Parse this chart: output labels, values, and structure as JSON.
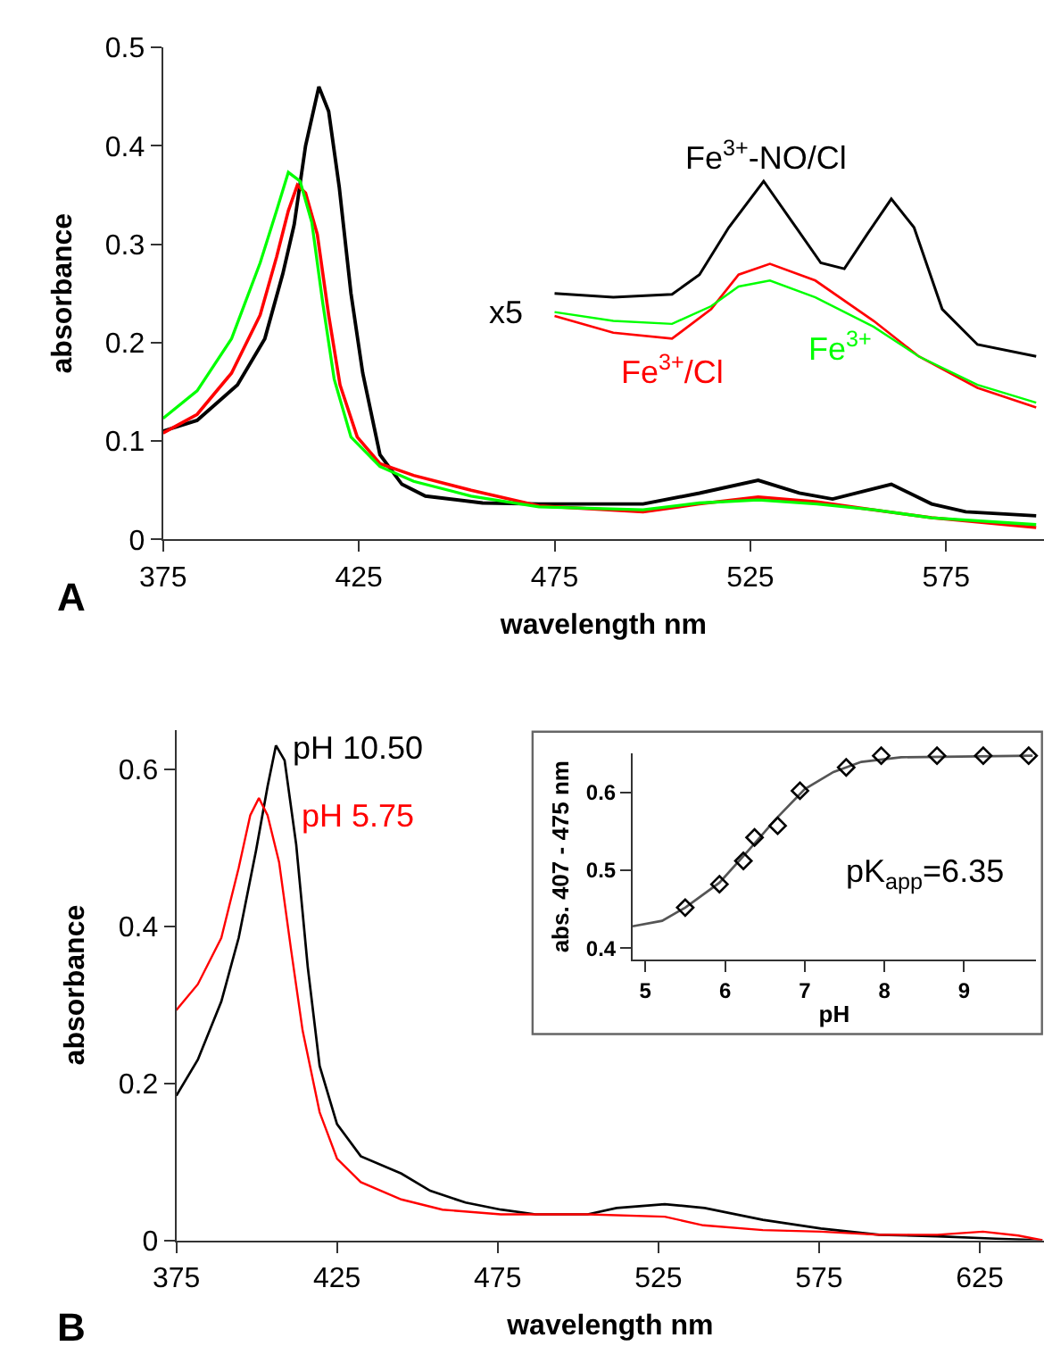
{
  "chart_data": [
    {
      "type": "line",
      "xlabel": "wavelength nm",
      "ylabel": "absorbance",
      "xlim": [
        375,
        600
      ],
      "ylim": [
        0,
        0.5
      ],
      "xticks": [
        375,
        425,
        475,
        525,
        575
      ],
      "yticks": [
        0,
        0.1,
        0.2,
        0.3,
        0.4,
        0.5
      ],
      "grid": false,
      "series": [
        {
          "color": "#000000",
          "x": [
            375,
            383.7,
            394,
            401,
            405.6,
            408.5,
            411.4,
            414.8,
            417.3,
            420,
            423,
            426,
            430.4,
            436,
            442,
            456.6,
            471,
            497.6,
            512,
            527,
            537.5,
            546,
            561,
            571.3,
            580,
            598
          ],
          "values": [
            0.11,
            0.121,
            0.157,
            0.204,
            0.27,
            0.32,
            0.4,
            0.46,
            0.435,
            0.358,
            0.25,
            0.169,
            0.086,
            0.056,
            0.044,
            0.037,
            0.036,
            0.036,
            0.047,
            0.06,
            0.047,
            0.041,
            0.056,
            0.036,
            0.028,
            0.024
          ]
        },
        {
          "color": "#ff0000",
          "x": [
            375,
            383.7,
            392.5,
            399.8,
            404,
            407,
            409.3,
            411.4,
            414.4,
            417.3,
            420.2,
            424.6,
            430.4,
            439,
            453.7,
            471,
            497.6,
            512,
            527,
            542,
            556.5,
            571.3,
            598
          ],
          "values": [
            0.108,
            0.127,
            0.169,
            0.228,
            0.287,
            0.334,
            0.36,
            0.352,
            0.31,
            0.228,
            0.157,
            0.104,
            0.077,
            0.065,
            0.05,
            0.034,
            0.028,
            0.036,
            0.043,
            0.038,
            0.03,
            0.022,
            0.012
          ]
        },
        {
          "color": "#00ff00",
          "x": [
            375,
            383.7,
            392.5,
            399.8,
            404,
            407,
            410,
            413,
            415.8,
            418.7,
            423,
            430.4,
            439,
            453.7,
            471,
            497.6,
            512,
            527,
            542,
            556.5,
            571.3,
            598
          ],
          "values": [
            0.123,
            0.151,
            0.204,
            0.281,
            0.334,
            0.373,
            0.364,
            0.322,
            0.24,
            0.163,
            0.104,
            0.074,
            0.059,
            0.044,
            0.033,
            0.03,
            0.037,
            0.04,
            0.036,
            0.03,
            0.022,
            0.015
          ]
        },
        {
          "name": "Fe$^{3+}$-NO/Cl",
          "color": "#000000",
          "x": [
            475,
            490,
            505,
            512,
            519.5,
            528.4,
            535.8,
            543,
            549,
            555,
            561,
            566.8,
            574,
            583,
            598
          ],
          "values": [
            0.25,
            0.246,
            0.249,
            0.269,
            0.317,
            0.364,
            0.322,
            0.281,
            0.275,
            0.311,
            0.346,
            0.317,
            0.234,
            0.198,
            0.186
          ]
        },
        {
          "name": "Fe$^{3+}$/Cl",
          "color": "#ff0000",
          "x": [
            475,
            490,
            505,
            515,
            522,
            530,
            541.6,
            556.5,
            568,
            583,
            598
          ],
          "values": [
            0.227,
            0.21,
            0.204,
            0.234,
            0.269,
            0.28,
            0.263,
            0.222,
            0.186,
            0.154,
            0.134
          ]
        },
        {
          "name": "Fe$^{3+}$",
          "color": "#00ff00",
          "x": [
            475,
            490,
            505,
            515,
            522,
            530,
            541.6,
            556.5,
            568,
            583,
            598
          ],
          "values": [
            0.231,
            0.222,
            0.219,
            0.237,
            0.257,
            0.263,
            0.246,
            0.216,
            0.186,
            0.157,
            0.139
          ]
        }
      ],
      "annotations": [
        "x5",
        "A"
      ]
    },
    {
      "type": "line",
      "xlabel": "wavelength nm",
      "ylabel": "absorbance",
      "xlim": [
        375,
        645
      ],
      "ylim": [
        0,
        0.65
      ],
      "xticks": [
        375,
        425,
        475,
        525,
        575,
        625
      ],
      "yticks": [
        0,
        0.2,
        0.4,
        0.6
      ],
      "grid": false,
      "series": [
        {
          "name": "pH 10.50",
          "color": "#000000",
          "x": [
            375,
            381.7,
            389,
            394.4,
            399.8,
            403.4,
            406,
            408.7,
            412.3,
            415.9,
            419.6,
            425,
            432.4,
            445,
            454,
            465,
            476,
            486.8,
            503,
            512,
            527,
            539.4,
            557.5,
            575.6,
            593.7,
            611.8,
            630,
            644.5
          ],
          "values": [
            0.184,
            0.23,
            0.304,
            0.385,
            0.496,
            0.578,
            0.63,
            0.611,
            0.504,
            0.348,
            0.222,
            0.148,
            0.107,
            0.085,
            0.063,
            0.048,
            0.039,
            0.033,
            0.033,
            0.041,
            0.046,
            0.041,
            0.026,
            0.015,
            0.007,
            0.005,
            0.002,
            0
          ]
        },
        {
          "name": "pH 5.75",
          "color": "#ff0000",
          "x": [
            375,
            381.7,
            389,
            394.4,
            398,
            400.7,
            403.4,
            407,
            410.7,
            414.3,
            419.6,
            425,
            432.4,
            445,
            457.8,
            476,
            503,
            527,
            539,
            557.5,
            575.6,
            593.7,
            611.8,
            626,
            637,
            644.5
          ],
          "values": [
            0.293,
            0.326,
            0.385,
            0.474,
            0.541,
            0.563,
            0.541,
            0.481,
            0.37,
            0.267,
            0.163,
            0.104,
            0.074,
            0.052,
            0.039,
            0.033,
            0.033,
            0.03,
            0.019,
            0.013,
            0.011,
            0.007,
            0.007,
            0.011,
            0.006,
            0
          ]
        }
      ],
      "annotations": [
        "B"
      ]
    },
    {
      "type": "scatter",
      "xlabel": "pH",
      "ylabel": "abs. 407 - 475 nm",
      "xlim": [
        4.84,
        9.9
      ],
      "ylim": [
        0.385,
        0.65
      ],
      "xticks": [
        5,
        6,
        7,
        8,
        9
      ],
      "yticks": [
        0.4,
        0.5,
        0.6
      ],
      "grid": false,
      "series": [
        {
          "type": "line",
          "color": "#555555",
          "x": [
            4.84,
            5.21,
            5.5,
            5.93,
            6.29,
            6.64,
            7.0,
            7.36,
            7.71,
            8.21,
            9.86
          ],
          "values": [
            0.428,
            0.435,
            0.452,
            0.484,
            0.525,
            0.566,
            0.604,
            0.626,
            0.639,
            0.645,
            0.647
          ]
        },
        {
          "type": "scatter",
          "color": "#000000",
          "marker": "diamond",
          "x": [
            5.5,
            5.93,
            6.23,
            6.37,
            6.66,
            6.94,
            7.52,
            7.96,
            8.66,
            9.24,
            9.81
          ],
          "values": [
            0.452,
            0.482,
            0.512,
            0.542,
            0.557,
            0.602,
            0.632,
            0.647,
            0.647,
            0.647,
            0.647
          ]
        }
      ],
      "annotations": [
        "pK$_{app}$=6.35"
      ]
    }
  ]
}
